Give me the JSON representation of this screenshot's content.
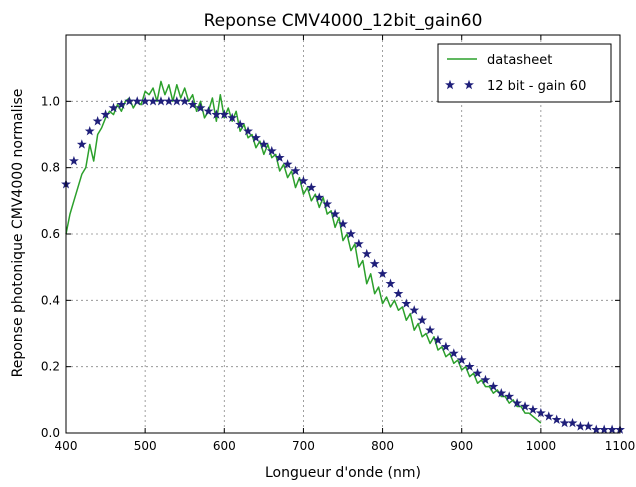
{
  "chart_data": {
    "type": "line",
    "title": "Reponse CMV4000_12bit_gain60",
    "xlabel": "Longueur d'onde (nm)",
    "ylabel": "Reponse photonique CMV4000 normalise",
    "xlim": [
      400,
      1100
    ],
    "ylim": [
      0,
      1.2
    ],
    "xticks": [
      "400",
      "500",
      "600",
      "700",
      "800",
      "900",
      "1000",
      "1100"
    ],
    "yticks": [
      "0.0",
      "0.2",
      "0.4",
      "0.6",
      "0.8",
      "1.0"
    ],
    "grid": true,
    "legend_position": "top-right",
    "series": [
      {
        "name": "datasheet",
        "style": "line",
        "color": "#2ca02c",
        "x": [
          400,
          405,
          410,
          415,
          420,
          425,
          430,
          435,
          440,
          445,
          450,
          455,
          460,
          465,
          470,
          475,
          480,
          485,
          490,
          495,
          500,
          505,
          510,
          515,
          520,
          525,
          530,
          535,
          540,
          545,
          550,
          555,
          560,
          565,
          570,
          575,
          580,
          585,
          590,
          595,
          600,
          605,
          610,
          615,
          620,
          625,
          630,
          635,
          640,
          645,
          650,
          655,
          660,
          665,
          670,
          675,
          680,
          685,
          690,
          695,
          700,
          705,
          710,
          715,
          720,
          725,
          730,
          735,
          740,
          745,
          750,
          755,
          760,
          765,
          770,
          775,
          780,
          785,
          790,
          795,
          800,
          805,
          810,
          815,
          820,
          825,
          830,
          835,
          840,
          845,
          850,
          855,
          860,
          865,
          870,
          875,
          880,
          885,
          890,
          895,
          900,
          905,
          910,
          915,
          920,
          925,
          930,
          935,
          940,
          945,
          950,
          955,
          960,
          965,
          970,
          975,
          980,
          985,
          990,
          995,
          1000
        ],
        "y": [
          0.6,
          0.66,
          0.7,
          0.74,
          0.78,
          0.8,
          0.87,
          0.82,
          0.9,
          0.92,
          0.95,
          0.97,
          0.96,
          0.99,
          0.97,
          1.0,
          1.01,
          0.98,
          1.0,
          0.99,
          1.03,
          1.02,
          1.04,
          1.0,
          1.06,
          1.02,
          1.05,
          1.0,
          1.05,
          1.01,
          1.04,
          1.0,
          1.02,
          0.97,
          1.0,
          0.95,
          0.97,
          1.01,
          0.94,
          1.02,
          0.95,
          0.98,
          0.94,
          0.97,
          0.91,
          0.93,
          0.89,
          0.9,
          0.86,
          0.88,
          0.84,
          0.87,
          0.83,
          0.84,
          0.79,
          0.81,
          0.77,
          0.79,
          0.74,
          0.77,
          0.72,
          0.74,
          0.7,
          0.72,
          0.68,
          0.71,
          0.66,
          0.67,
          0.62,
          0.65,
          0.58,
          0.6,
          0.55,
          0.57,
          0.5,
          0.52,
          0.45,
          0.48,
          0.42,
          0.44,
          0.39,
          0.41,
          0.38,
          0.4,
          0.37,
          0.38,
          0.34,
          0.36,
          0.31,
          0.33,
          0.29,
          0.3,
          0.27,
          0.29,
          0.25,
          0.26,
          0.23,
          0.24,
          0.21,
          0.22,
          0.19,
          0.2,
          0.17,
          0.18,
          0.15,
          0.16,
          0.14,
          0.14,
          0.12,
          0.13,
          0.11,
          0.11,
          0.09,
          0.1,
          0.08,
          0.08,
          0.06,
          0.06,
          0.05,
          0.04,
          0.03
        ]
      },
      {
        "name": "12 bit - gain 60",
        "style": "stars",
        "color": "#1f1f7a",
        "x": [
          400,
          410,
          420,
          430,
          440,
          450,
          460,
          470,
          480,
          490,
          500,
          510,
          520,
          530,
          540,
          550,
          560,
          570,
          580,
          590,
          600,
          610,
          620,
          630,
          640,
          650,
          660,
          670,
          680,
          690,
          700,
          710,
          720,
          730,
          740,
          750,
          760,
          770,
          780,
          790,
          800,
          810,
          820,
          830,
          840,
          850,
          860,
          870,
          880,
          890,
          900,
          910,
          920,
          930,
          940,
          950,
          960,
          970,
          980,
          990,
          1000,
          1010,
          1020,
          1030,
          1040,
          1050,
          1060,
          1070,
          1080,
          1090,
          1100
        ],
        "y": [
          0.75,
          0.82,
          0.87,
          0.91,
          0.94,
          0.96,
          0.98,
          0.99,
          1.0,
          1.0,
          1.0,
          1.0,
          1.0,
          1.0,
          1.0,
          1.0,
          0.99,
          0.98,
          0.97,
          0.96,
          0.96,
          0.95,
          0.93,
          0.91,
          0.89,
          0.87,
          0.85,
          0.83,
          0.81,
          0.79,
          0.76,
          0.74,
          0.71,
          0.69,
          0.66,
          0.63,
          0.6,
          0.57,
          0.54,
          0.51,
          0.48,
          0.45,
          0.42,
          0.39,
          0.37,
          0.34,
          0.31,
          0.28,
          0.26,
          0.24,
          0.22,
          0.2,
          0.18,
          0.16,
          0.14,
          0.12,
          0.11,
          0.09,
          0.08,
          0.07,
          0.06,
          0.05,
          0.04,
          0.03,
          0.03,
          0.02,
          0.02,
          0.01,
          0.01,
          0.01,
          0.01
        ]
      }
    ]
  }
}
